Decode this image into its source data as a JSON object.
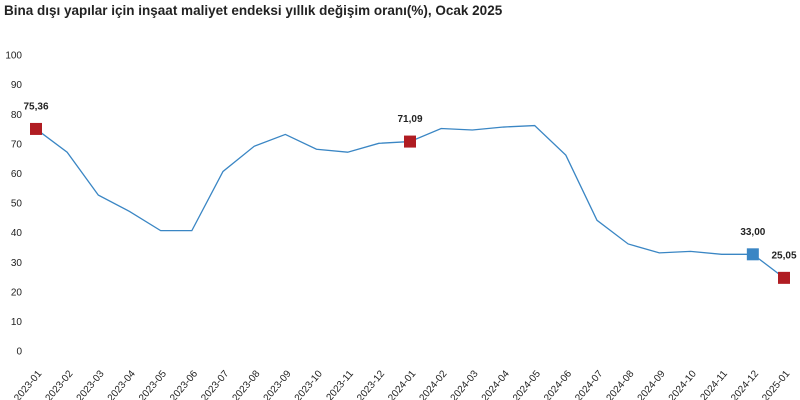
{
  "chart_data": {
    "type": "line",
    "title": "Bina dışı yapılar için inşaat maliyet endeksi yıllık değişim oranı(%), Ocak 2025",
    "categories": [
      "2023-01",
      "2023-02",
      "2023-03",
      "2023-04",
      "2023-05",
      "2023-06",
      "2023-07",
      "2023-08",
      "2023-09",
      "2023-10",
      "2023-11",
      "2023-12",
      "2024-01",
      "2024-02",
      "2024-03",
      "2024-04",
      "2024-05",
      "2024-06",
      "2024-07",
      "2024-08",
      "2024-09",
      "2024-10",
      "2024-11",
      "2024-12",
      "2025-01"
    ],
    "values": [
      75.36,
      67.5,
      53,
      47.5,
      41,
      41,
      61,
      69.5,
      73.5,
      68.5,
      67.5,
      70.5,
      71.09,
      75.5,
      75,
      76,
      76.5,
      66.5,
      44.5,
      36.5,
      33.5,
      34,
      33,
      33.0,
      25.05
    ],
    "value_labels": [
      "75,36",
      null,
      null,
      null,
      null,
      null,
      null,
      null,
      null,
      null,
      null,
      null,
      "71,09",
      null,
      null,
      null,
      null,
      null,
      null,
      null,
      null,
      null,
      null,
      "33,00",
      "25,05"
    ],
    "marker_colors": [
      "#b01c22",
      null,
      null,
      null,
      null,
      null,
      null,
      null,
      null,
      null,
      null,
      null,
      "#b01c22",
      null,
      null,
      null,
      null,
      null,
      null,
      null,
      null,
      null,
      null,
      "#3a86c4",
      "#b01c22"
    ],
    "color": "#3a86c4",
    "ylim": [
      0,
      100
    ],
    "yticks": [
      0,
      10,
      20,
      30,
      40,
      50,
      60,
      70,
      80,
      90,
      100
    ]
  }
}
